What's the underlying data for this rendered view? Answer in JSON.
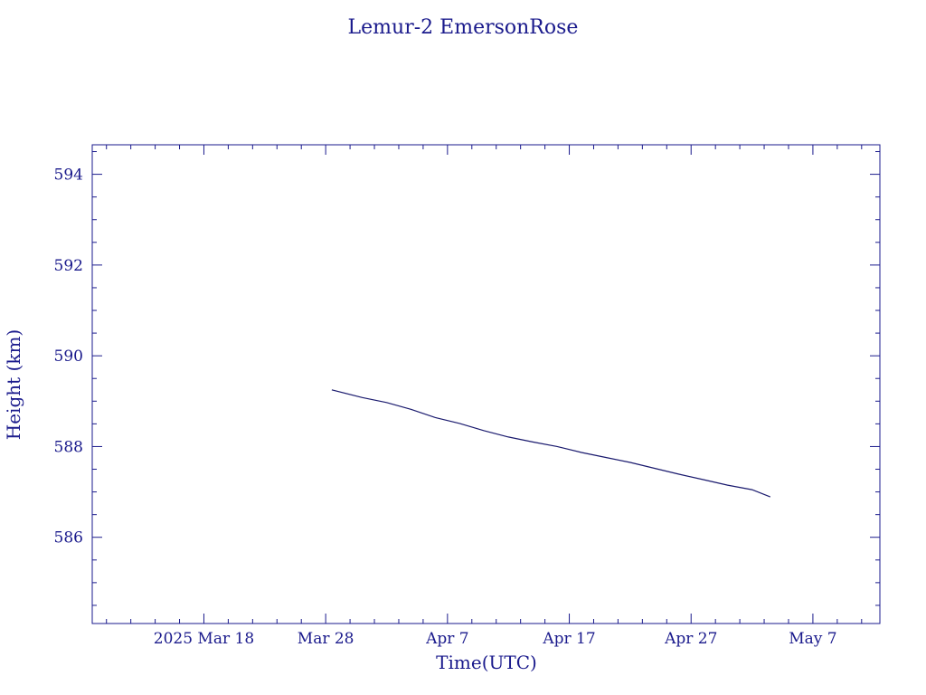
{
  "chart_data": {
    "type": "line",
    "title": "Lemur-2 EmersonRose",
    "xlabel": "Time(UTC)",
    "ylabel": "Height (km)",
    "x_tick_labels": [
      "2025 Mar 18",
      "Mar 28",
      "Apr  7",
      "Apr 17",
      "Apr 27",
      "May  7"
    ],
    "x_tick_dates": [
      "2025-03-18",
      "2025-03-28",
      "2025-04-07",
      "2025-04-17",
      "2025-04-27",
      "2025-05-07"
    ],
    "xlim": [
      "2025-03-08T20:00",
      "2025-05-12T12:00"
    ],
    "y_tick_labels": [
      "586",
      "588",
      "590",
      "592",
      "594"
    ],
    "y_ticks": [
      586,
      588,
      590,
      592,
      594
    ],
    "ylim": [
      584.1,
      594.65
    ],
    "grid": false,
    "series": [
      {
        "x": [
          "2025-03-28T12:00",
          "2025-03-31",
          "2025-04-02",
          "2025-04-04",
          "2025-04-06",
          "2025-04-08",
          "2025-04-10",
          "2025-04-12",
          "2025-04-14",
          "2025-04-16",
          "2025-04-18",
          "2025-04-20",
          "2025-04-22",
          "2025-04-24",
          "2025-04-26",
          "2025-04-28",
          "2025-04-30",
          "2025-05-02",
          "2025-05-03T12:00"
        ],
        "y": [
          589.25,
          589.08,
          588.97,
          588.82,
          588.64,
          588.51,
          588.35,
          588.21,
          588.1,
          588.0,
          587.87,
          587.76,
          587.65,
          587.52,
          587.39,
          587.27,
          587.15,
          587.05,
          586.89
        ]
      }
    ],
    "colors": {
      "axes": "#1a1a8c",
      "line": "#1a1a6e",
      "background": "#ffffff"
    }
  }
}
